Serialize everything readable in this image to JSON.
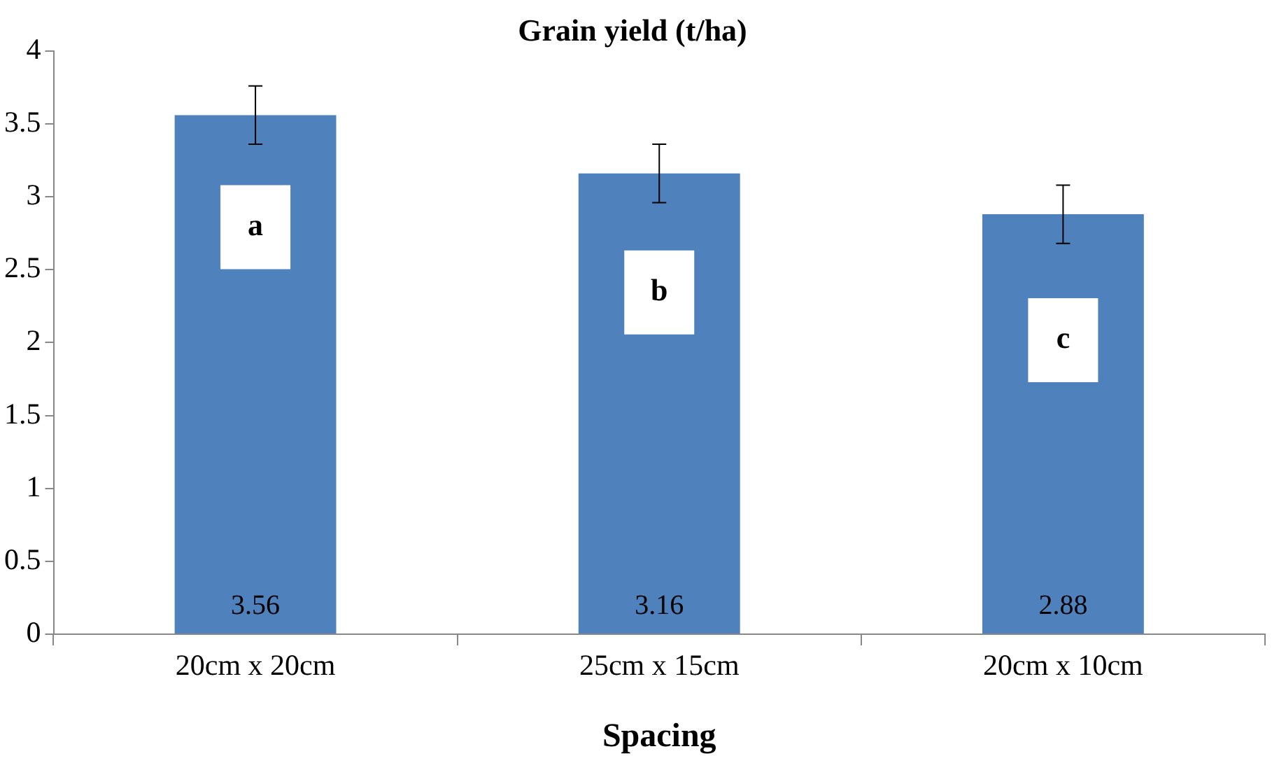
{
  "chart_data": {
    "type": "bar",
    "title": "Grain yield (t/ha)",
    "xlabel": "Spacing",
    "categories": [
      "20cm x 20cm",
      "25cm x 15cm",
      "20cm x 10cm"
    ],
    "values": [
      3.56,
      3.16,
      2.88
    ],
    "color": "#4f81bd",
    "errors": [
      0.2,
      0.2,
      0.2
    ],
    "ylim": [
      0,
      4
    ],
    "yticks": [
      0,
      0.5,
      1,
      1.5,
      2,
      2.5,
      3,
      3.5,
      4
    ],
    "grid": false,
    "data_labels": true,
    "annotations": [
      "a",
      "b",
      "c"
    ]
  }
}
